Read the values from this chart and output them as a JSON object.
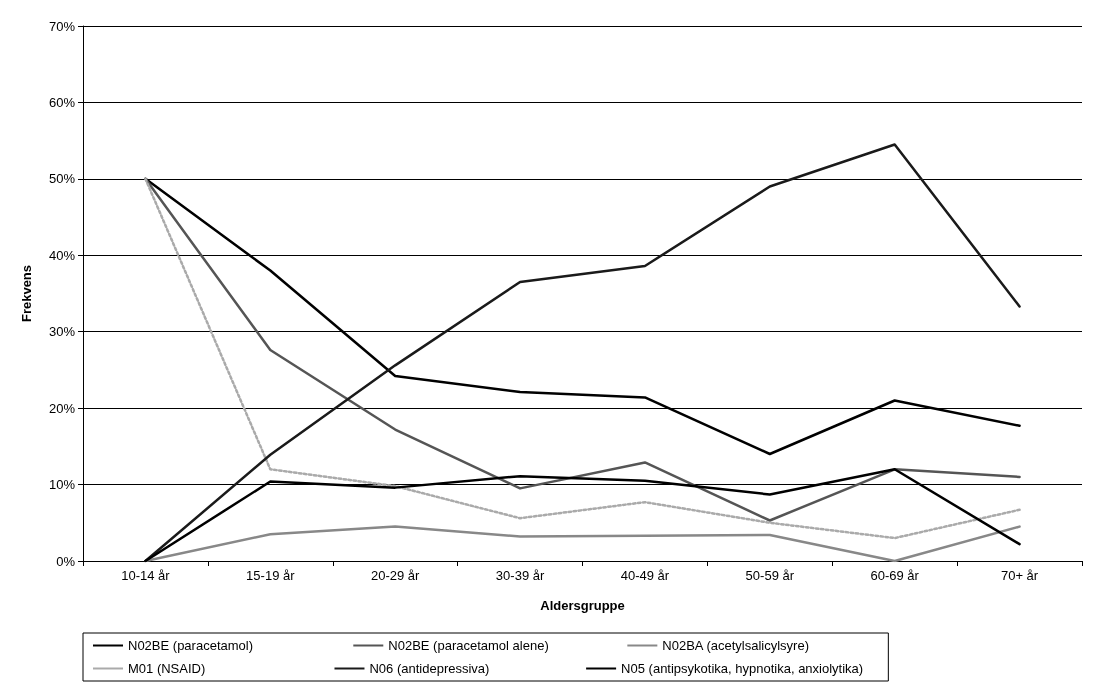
{
  "chart_data": {
    "type": "line",
    "xlabel": "Aldersgruppe",
    "ylabel": "Frekvens",
    "categories": [
      "10-14 år",
      "15-19 år",
      "20-29 år",
      "30-39 år",
      "40-49 år",
      "50-59 år",
      "60-69 år",
      "70+ år"
    ],
    "series": [
      {
        "name": "N02BE (paracetamol)",
        "color": "#000000",
        "values": [
          50,
          38,
          24.2,
          22.1,
          21.4,
          14,
          21,
          17.7
        ]
      },
      {
        "name": "N02BE (paracetamol alene)",
        "color": "#555555",
        "values": [
          50,
          27.6,
          17.2,
          9.5,
          12.9,
          5.3,
          12,
          11
        ]
      },
      {
        "name": "N02BA (acetylsalicylsyre)",
        "color": "#888888",
        "values": [
          0,
          3.5,
          4.5,
          3.2,
          3.3,
          3.4,
          0,
          4.5
        ]
      },
      {
        "name": "M01 (NSAID)",
        "color": "#aaaaaa",
        "line_style": "dotted",
        "values": [
          50,
          12,
          9.8,
          5.6,
          7.7,
          5,
          3,
          6.7
        ]
      },
      {
        "name": "N06 (antidepressiva)",
        "color": "#1a1a1a",
        "values": [
          0,
          13.9,
          25.6,
          36.5,
          38.6,
          49,
          54.5,
          33.3
        ]
      },
      {
        "name": "N05 (antipsykotika, hypnotika, anxiolytika)",
        "color": "#000000",
        "values": [
          0,
          10.4,
          9.6,
          11.1,
          10.5,
          8.7,
          12,
          2.2
        ]
      }
    ],
    "ylim": [
      0,
      70
    ],
    "yticks": [
      {
        "value": 0,
        "label": "0%"
      },
      {
        "value": 10,
        "label": "10%"
      },
      {
        "value": 20,
        "label": "20%"
      },
      {
        "value": 30,
        "label": "30%"
      },
      {
        "value": 40,
        "label": "40%"
      },
      {
        "value": 50,
        "label": "50%"
      },
      {
        "value": 60,
        "label": "60%"
      },
      {
        "value": 70,
        "label": "70%"
      }
    ],
    "grid": "y",
    "legend": "bottom",
    "marker": "none",
    "line_style": "solid"
  }
}
